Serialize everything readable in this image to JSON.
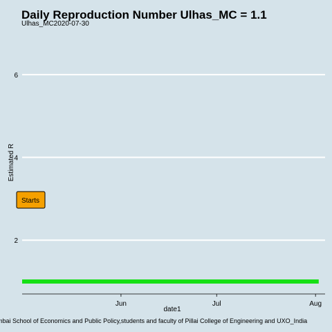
{
  "chart_data": {
    "type": "line",
    "title": "Daily Reproduction Number Ulhas_MC = 1.1",
    "subtitle": "Ulhas_MC2020-07-30",
    "xlabel": "date1",
    "ylabel": "Estimated R",
    "caption": "mbai School of Economics and Public Policy,students and faculty of Pillai College of Engineering and UXO_India",
    "x_tick_labels": [
      "Jun",
      "Jul",
      "Aug"
    ],
    "y_ticks": [
      2,
      4,
      6
    ],
    "y_tick_labels": [
      "2",
      "4",
      "6"
    ],
    "ylim": [
      0.7,
      7.0
    ],
    "grid": true,
    "series": [
      {
        "color": "#16e016",
        "x": [
          "2020-05-01",
          "2020-08-02"
        ],
        "y": [
          1.0,
          1.0
        ]
      }
    ],
    "annotation": {
      "text": "Starts",
      "fill": "#f5a000"
    },
    "colors": {
      "background": "#d5e3ea",
      "grid": "#ffffff",
      "series": "#16e016",
      "annotation": "#f5a000"
    }
  }
}
